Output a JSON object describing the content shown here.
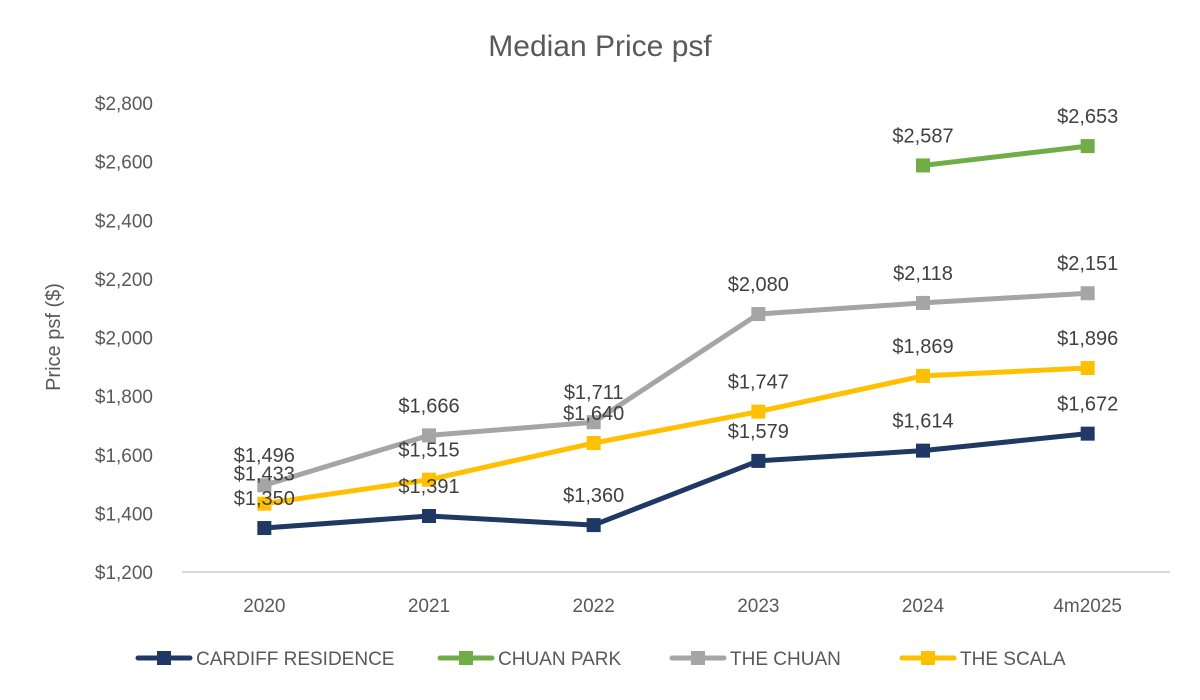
{
  "chart_data": {
    "type": "line",
    "title": "Median Price psf",
    "xlabel": "",
    "ylabel": "Price psf ($)",
    "categories": [
      "2020",
      "2021",
      "2022",
      "2023",
      "2024",
      "4m2025"
    ],
    "ylim": [
      1200,
      2800
    ],
    "yticks": [
      1200,
      1400,
      1600,
      1800,
      2000,
      2200,
      2400,
      2600,
      2800
    ],
    "ytick_labels": [
      "$1,200",
      "$1,400",
      "$1,600",
      "$1,800",
      "$2,000",
      "$2,200",
      "$2,400",
      "$2,600",
      "$2,800"
    ],
    "grid": false,
    "legend_position": "bottom",
    "series": [
      {
        "name": "CARDIFF RESIDENCE",
        "color": "#1f3864",
        "values": [
          1350,
          1391,
          1360,
          1579,
          1614,
          1672
        ],
        "labels": [
          "$1,350",
          "$1,391",
          "$1,360",
          "$1,579",
          "$1,614",
          "$1,672"
        ]
      },
      {
        "name": "CHUAN PARK",
        "color": "#70ad47",
        "values": [
          null,
          null,
          null,
          null,
          2587,
          2653
        ],
        "labels": [
          null,
          null,
          null,
          null,
          "$2,587",
          "$2,653"
        ]
      },
      {
        "name": "THE CHUAN",
        "color": "#a5a5a5",
        "values": [
          1496,
          1666,
          1711,
          2080,
          2118,
          2151
        ],
        "labels": [
          "$1,496",
          "$1,666",
          "$1,711",
          "$2,080",
          "$2,118",
          "$2,151"
        ]
      },
      {
        "name": "THE SCALA",
        "color": "#ffc000",
        "values": [
          1433,
          1515,
          1640,
          1747,
          1869,
          1896
        ],
        "labels": [
          "$1,433",
          "$1,515",
          "$1,640",
          "$1,747",
          "$1,869",
          "$1,896"
        ]
      }
    ]
  }
}
